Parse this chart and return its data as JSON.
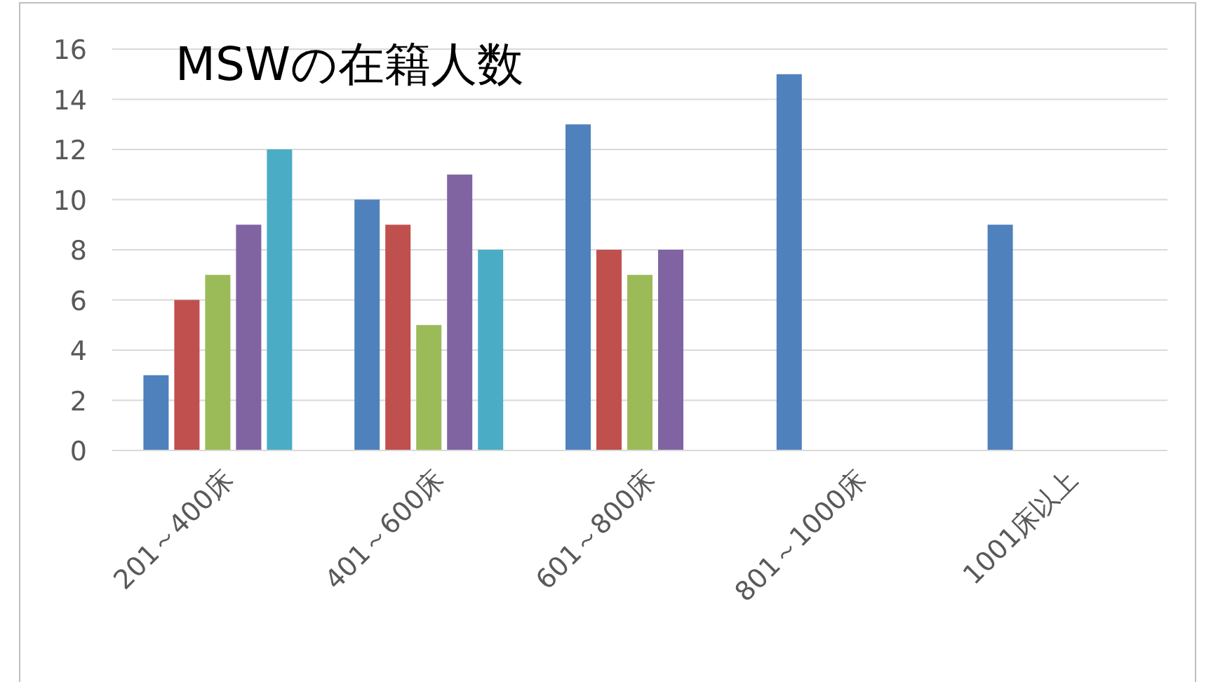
{
  "chart_data": {
    "type": "bar",
    "title": "MSWの在籍人数",
    "categories": [
      "201～400床",
      "401～600床",
      "601～800床",
      "801～1000床",
      "1001床以上"
    ],
    "series": [
      {
        "color": "#4f81bd",
        "values": [
          3,
          10,
          13,
          15,
          9
        ]
      },
      {
        "color": "#c0504d",
        "values": [
          6,
          9,
          8,
          null,
          null
        ]
      },
      {
        "color": "#9bbb59",
        "values": [
          7,
          5,
          7,
          null,
          null
        ]
      },
      {
        "color": "#8064a2",
        "values": [
          9,
          11,
          8,
          null,
          null
        ]
      },
      {
        "color": "#4bacc6",
        "values": [
          12,
          8,
          null,
          null,
          null
        ]
      }
    ],
    "ylim": [
      0,
      16
    ],
    "yticks": [
      0,
      2,
      4,
      6,
      8,
      10,
      12,
      14,
      16
    ],
    "grid": "y"
  }
}
